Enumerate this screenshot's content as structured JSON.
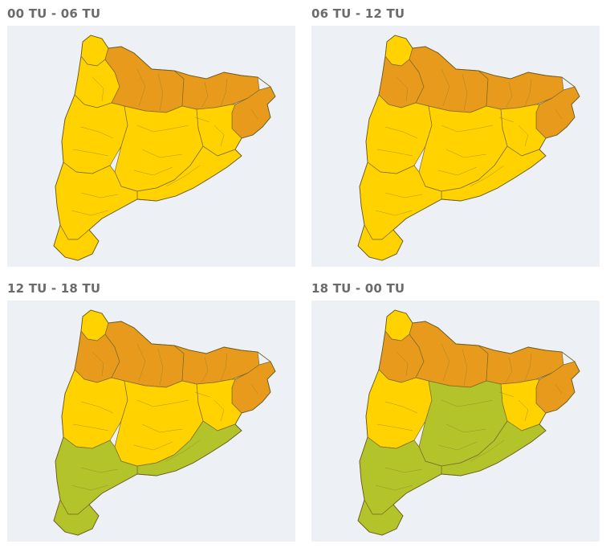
{
  "colors": {
    "background": "#edf1f5",
    "level_yellow": "#ffd200",
    "level_orange": "#e89a1c",
    "level_green": "#b2c42a"
  },
  "panels": [
    {
      "title": "00 TU - 06 TU",
      "regions": {
        "aran": "level_yellow",
        "nw_pyrenees": "level_yellow",
        "central_pyrenees": "level_orange",
        "ne_pyrenees": "level_orange",
        "garrotxa_emporda": "level_orange",
        "girona_east": "level_yellow",
        "west_plain": "level_yellow",
        "central": "level_yellow",
        "barcelona_coast": "level_yellow",
        "south": "level_yellow",
        "ebre_delta": "level_yellow"
      }
    },
    {
      "title": "06 TU - 12 TU",
      "regions": {
        "aran": "level_yellow",
        "nw_pyrenees": "level_orange",
        "central_pyrenees": "level_orange",
        "ne_pyrenees": "level_orange",
        "garrotxa_emporda": "level_orange",
        "girona_east": "level_yellow",
        "west_plain": "level_yellow",
        "central": "level_yellow",
        "barcelona_coast": "level_yellow",
        "south": "level_yellow",
        "ebre_delta": "level_yellow"
      }
    },
    {
      "title": "12 TU - 18 TU",
      "regions": {
        "aran": "level_yellow",
        "nw_pyrenees": "level_orange",
        "central_pyrenees": "level_orange",
        "ne_pyrenees": "level_orange",
        "garrotxa_emporda": "level_orange",
        "girona_east": "level_yellow",
        "west_plain": "level_yellow",
        "central": "level_yellow",
        "barcelona_coast": "level_green",
        "south": "level_green",
        "ebre_delta": "level_green"
      }
    },
    {
      "title": "18 TU - 00 TU",
      "regions": {
        "aran": "level_yellow",
        "nw_pyrenees": "level_orange",
        "central_pyrenees": "level_orange",
        "ne_pyrenees": "level_orange",
        "garrotxa_emporda": "level_orange",
        "girona_east": "level_yellow",
        "west_plain": "level_yellow",
        "central": "level_green",
        "barcelona_coast": "level_green",
        "south": "level_green",
        "ebre_delta": "level_green"
      }
    }
  ]
}
